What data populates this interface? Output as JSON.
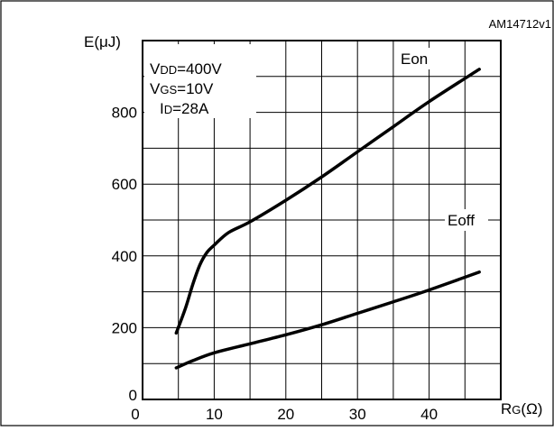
{
  "chart_data": {
    "type": "line",
    "figure_id": "AM14712v1",
    "ylabel": {
      "main": "E",
      "unit": "(μJ)"
    },
    "xlabel": {
      "main": "R",
      "sub": "G",
      "unit": "(Ω)"
    },
    "xlim": [
      0,
      50
    ],
    "ylim": [
      0,
      1000
    ],
    "x_ticks": [
      "0",
      "10",
      "20",
      "30",
      "40"
    ],
    "x_tick_values": [
      0,
      10,
      20,
      30,
      40
    ],
    "y_ticks": [
      "0",
      "200",
      "400",
      "600",
      "800"
    ],
    "y_tick_values": [
      0,
      200,
      400,
      600,
      800
    ],
    "grid": true,
    "conditions": [
      {
        "main": "V",
        "sub": "DD",
        "value": "=400V"
      },
      {
        "main": "V",
        "sub": "GS",
        "value": "=10V"
      },
      {
        "main": "I",
        "sub": "D",
        "value": "=28A"
      }
    ],
    "series": [
      {
        "name": "Eon",
        "x": [
          4.7,
          6,
          7,
          8,
          9,
          10,
          12,
          15,
          20,
          25,
          30,
          35,
          40,
          47
        ],
        "y": [
          185,
          255,
          320,
          375,
          410,
          430,
          465,
          495,
          555,
          620,
          690,
          760,
          830,
          920
        ]
      },
      {
        "name": "Eoff",
        "x": [
          4.7,
          7,
          10,
          15,
          20,
          25,
          30,
          35,
          40,
          47
        ],
        "y": [
          88,
          108,
          130,
          155,
          180,
          208,
          240,
          272,
          305,
          355
        ]
      }
    ]
  }
}
